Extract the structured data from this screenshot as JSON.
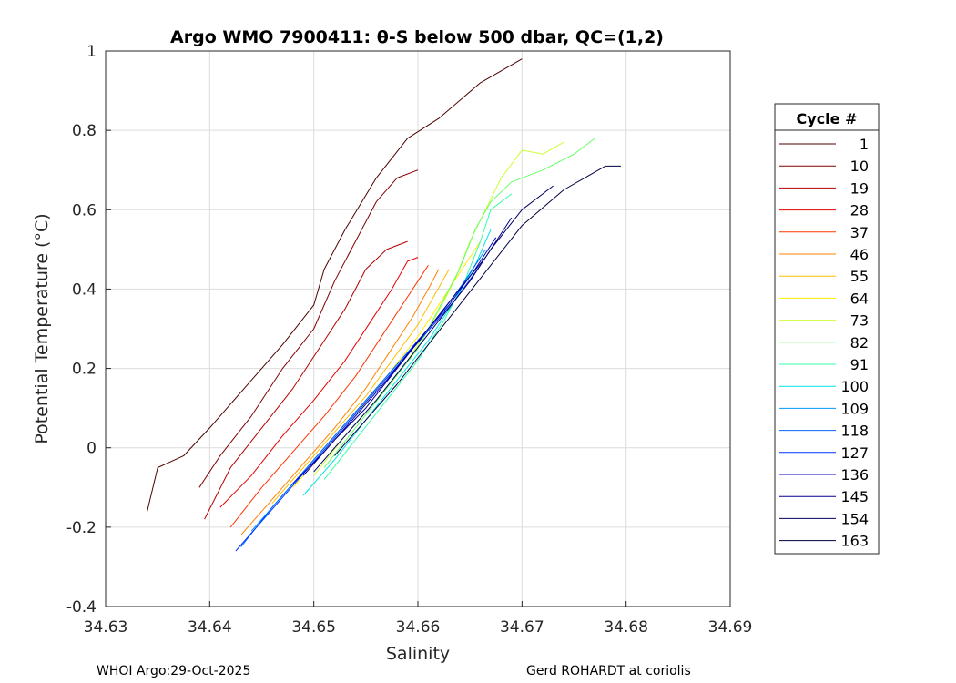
{
  "chart_data": {
    "type": "line",
    "title": "Argo WMO 7900411: θ-S below 500 dbar,  QC=(1,2)",
    "xlabel": "Salinity",
    "ylabel": "Potential Temperature (°C)",
    "xlim": [
      34.63,
      34.69
    ],
    "ylim": [
      -0.4,
      1.0
    ],
    "x_ticks": [
      "34.63",
      "34.64",
      "34.65",
      "34.66",
      "34.67",
      "34.68",
      "34.69"
    ],
    "y_ticks": [
      "1",
      "0.8",
      "0.6",
      "0.4",
      "0.2",
      "0",
      "-0.2",
      "-0.4"
    ],
    "grid": true,
    "legend": {
      "title": "Cycle #",
      "placement": "right",
      "entries": [
        {
          "label": "1",
          "color": "#4d0000"
        },
        {
          "label": "10",
          "color": "#800000"
        },
        {
          "label": "19",
          "color": "#b30000"
        },
        {
          "label": "28",
          "color": "#e60000"
        },
        {
          "label": "37",
          "color": "#ff3300"
        },
        {
          "label": "46",
          "color": "#ff8000"
        },
        {
          "label": "55",
          "color": "#ffbf00"
        },
        {
          "label": "64",
          "color": "#ffee00"
        },
        {
          "label": "73",
          "color": "#ccff33"
        },
        {
          "label": "82",
          "color": "#66ff66"
        },
        {
          "label": "91",
          "color": "#33ffaa"
        },
        {
          "label": "100",
          "color": "#00e6e6"
        },
        {
          "label": "109",
          "color": "#0099ff"
        },
        {
          "label": "118",
          "color": "#0066ff"
        },
        {
          "label": "127",
          "color": "#0033ff"
        },
        {
          "label": "136",
          "color": "#0000cc"
        },
        {
          "label": "145",
          "color": "#00008c"
        },
        {
          "label": "154",
          "color": "#000066"
        },
        {
          "label": "163",
          "color": "#000040"
        }
      ]
    },
    "series": [
      {
        "name": "1",
        "color": "#4d0000",
        "points": [
          [
            34.634,
            -0.16
          ],
          [
            34.635,
            -0.05
          ],
          [
            34.6375,
            -0.02
          ],
          [
            34.64,
            0.05
          ],
          [
            34.643,
            0.14
          ],
          [
            34.647,
            0.26
          ],
          [
            34.65,
            0.36
          ],
          [
            34.651,
            0.45
          ],
          [
            34.653,
            0.55
          ],
          [
            34.656,
            0.68
          ],
          [
            34.659,
            0.78
          ],
          [
            34.662,
            0.83
          ],
          [
            34.666,
            0.92
          ],
          [
            34.668,
            0.95
          ],
          [
            34.67,
            0.98
          ]
        ]
      },
      {
        "name": "10",
        "color": "#800000",
        "points": [
          [
            34.639,
            -0.1
          ],
          [
            34.641,
            -0.02
          ],
          [
            34.644,
            0.08
          ],
          [
            34.647,
            0.2
          ],
          [
            34.65,
            0.3
          ],
          [
            34.652,
            0.42
          ],
          [
            34.654,
            0.52
          ],
          [
            34.656,
            0.62
          ],
          [
            34.658,
            0.68
          ],
          [
            34.66,
            0.7
          ]
        ]
      },
      {
        "name": "19",
        "color": "#b30000",
        "points": [
          [
            34.6395,
            -0.18
          ],
          [
            34.642,
            -0.05
          ],
          [
            34.645,
            0.05
          ],
          [
            34.648,
            0.15
          ],
          [
            34.651,
            0.27
          ],
          [
            34.653,
            0.35
          ],
          [
            34.655,
            0.45
          ],
          [
            34.657,
            0.5
          ],
          [
            34.659,
            0.52
          ]
        ]
      },
      {
        "name": "28",
        "color": "#e60000",
        "points": [
          [
            34.641,
            -0.15
          ],
          [
            34.644,
            -0.07
          ],
          [
            34.647,
            0.03
          ],
          [
            34.65,
            0.12
          ],
          [
            34.653,
            0.22
          ],
          [
            34.6555,
            0.32
          ],
          [
            34.6575,
            0.4
          ],
          [
            34.659,
            0.47
          ],
          [
            34.66,
            0.48
          ]
        ]
      },
      {
        "name": "37",
        "color": "#ff3300",
        "points": [
          [
            34.642,
            -0.2
          ],
          [
            34.645,
            -0.1
          ],
          [
            34.648,
            -0.01
          ],
          [
            34.651,
            0.08
          ],
          [
            34.654,
            0.18
          ],
          [
            34.6565,
            0.28
          ],
          [
            34.6585,
            0.36
          ],
          [
            34.66,
            0.42
          ],
          [
            34.661,
            0.46
          ]
        ]
      },
      {
        "name": "46",
        "color": "#ff8000",
        "points": [
          [
            34.643,
            -0.22
          ],
          [
            34.646,
            -0.13
          ],
          [
            34.649,
            -0.04
          ],
          [
            34.652,
            0.05
          ],
          [
            34.655,
            0.15
          ],
          [
            34.6575,
            0.25
          ],
          [
            34.6595,
            0.33
          ],
          [
            34.661,
            0.4
          ],
          [
            34.662,
            0.45
          ]
        ]
      },
      {
        "name": "55",
        "color": "#ffbf00",
        "points": [
          [
            34.646,
            -0.14
          ],
          [
            34.649,
            -0.05
          ],
          [
            34.652,
            0.04
          ],
          [
            34.655,
            0.13
          ],
          [
            34.6575,
            0.22
          ],
          [
            34.66,
            0.31
          ],
          [
            34.6615,
            0.38
          ],
          [
            34.663,
            0.45
          ]
        ]
      },
      {
        "name": "64",
        "color": "#ffee00",
        "points": [
          [
            34.648,
            -0.1
          ],
          [
            34.651,
            -0.01
          ],
          [
            34.654,
            0.08
          ],
          [
            34.657,
            0.18
          ],
          [
            34.66,
            0.28
          ],
          [
            34.662,
            0.36
          ],
          [
            34.664,
            0.44
          ],
          [
            34.666,
            0.52
          ]
        ]
      },
      {
        "name": "73",
        "color": "#ccff33",
        "points": [
          [
            34.65,
            -0.07
          ],
          [
            34.653,
            0.03
          ],
          [
            34.656,
            0.12
          ],
          [
            34.659,
            0.22
          ],
          [
            34.6615,
            0.32
          ],
          [
            34.6635,
            0.42
          ],
          [
            34.665,
            0.52
          ],
          [
            34.6665,
            0.6
          ],
          [
            34.668,
            0.68
          ],
          [
            34.67,
            0.75
          ],
          [
            34.672,
            0.74
          ],
          [
            34.674,
            0.77
          ]
        ]
      },
      {
        "name": "82",
        "color": "#66ff66",
        "points": [
          [
            34.651,
            -0.05
          ],
          [
            34.654,
            0.05
          ],
          [
            34.657,
            0.15
          ],
          [
            34.66,
            0.25
          ],
          [
            34.662,
            0.35
          ],
          [
            34.664,
            0.45
          ],
          [
            34.6655,
            0.55
          ],
          [
            34.667,
            0.62
          ],
          [
            34.669,
            0.67
          ],
          [
            34.672,
            0.7
          ],
          [
            34.675,
            0.74
          ],
          [
            34.677,
            0.78
          ]
        ]
      },
      {
        "name": "91",
        "color": "#33ffaa",
        "points": [
          [
            34.651,
            -0.08
          ],
          [
            34.654,
            0.02
          ],
          [
            34.657,
            0.12
          ],
          [
            34.66,
            0.22
          ],
          [
            34.6625,
            0.32
          ],
          [
            34.6645,
            0.42
          ],
          [
            34.666,
            0.52
          ],
          [
            34.667,
            0.6
          ],
          [
            34.669,
            0.64
          ]
        ]
      },
      {
        "name": "100",
        "color": "#00e6e6",
        "points": [
          [
            34.649,
            -0.12
          ],
          [
            34.652,
            -0.03
          ],
          [
            34.655,
            0.07
          ],
          [
            34.658,
            0.17
          ],
          [
            34.661,
            0.27
          ],
          [
            34.6635,
            0.37
          ],
          [
            34.6655,
            0.46
          ],
          [
            34.667,
            0.55
          ]
        ]
      },
      {
        "name": "109",
        "color": "#0099ff",
        "points": [
          [
            34.644,
            -0.21
          ],
          [
            34.647,
            -0.12
          ],
          [
            34.65,
            -0.03
          ],
          [
            34.653,
            0.06
          ],
          [
            34.656,
            0.15
          ],
          [
            34.659,
            0.24
          ],
          [
            34.662,
            0.33
          ],
          [
            34.6645,
            0.42
          ],
          [
            34.6665,
            0.5
          ]
        ]
      },
      {
        "name": "118",
        "color": "#0066ff",
        "points": [
          [
            34.643,
            -0.25
          ],
          [
            34.646,
            -0.15
          ],
          [
            34.649,
            -0.06
          ],
          [
            34.652,
            0.03
          ],
          [
            34.655,
            0.12
          ],
          [
            34.658,
            0.21
          ],
          [
            34.661,
            0.3
          ],
          [
            34.664,
            0.4
          ],
          [
            34.666,
            0.48
          ]
        ]
      },
      {
        "name": "127",
        "color": "#0033ff",
        "points": [
          [
            34.6425,
            -0.26
          ],
          [
            34.6455,
            -0.17
          ],
          [
            34.6485,
            -0.08
          ],
          [
            34.6515,
            0.01
          ],
          [
            34.6545,
            0.1
          ],
          [
            34.6575,
            0.19
          ],
          [
            34.6605,
            0.28
          ],
          [
            34.6635,
            0.37
          ],
          [
            34.666,
            0.46
          ]
        ]
      },
      {
        "name": "136",
        "color": "#0000cc",
        "points": [
          [
            34.648,
            -0.09
          ],
          [
            34.651,
            -0.01
          ],
          [
            34.654,
            0.08
          ],
          [
            34.657,
            0.17
          ],
          [
            34.66,
            0.27
          ],
          [
            34.663,
            0.36
          ],
          [
            34.6655,
            0.45
          ],
          [
            34.6675,
            0.53
          ]
        ]
      },
      {
        "name": "145",
        "color": "#00008c",
        "points": [
          [
            34.649,
            -0.07
          ],
          [
            34.652,
            0.02
          ],
          [
            34.655,
            0.1
          ],
          [
            34.658,
            0.2
          ],
          [
            34.661,
            0.3
          ],
          [
            34.664,
            0.4
          ],
          [
            34.6665,
            0.48
          ],
          [
            34.669,
            0.58
          ]
        ]
      },
      {
        "name": "154",
        "color": "#000066",
        "points": [
          [
            34.65,
            -0.06
          ],
          [
            34.653,
            0.03
          ],
          [
            34.656,
            0.12
          ],
          [
            34.659,
            0.22
          ],
          [
            34.662,
            0.32
          ],
          [
            34.665,
            0.42
          ],
          [
            34.667,
            0.5
          ],
          [
            34.67,
            0.6
          ],
          [
            34.673,
            0.66
          ]
        ]
      },
      {
        "name": "163",
        "color": "#000040",
        "points": [
          [
            34.652,
            -0.02
          ],
          [
            34.655,
            0.07
          ],
          [
            34.658,
            0.16
          ],
          [
            34.661,
            0.26
          ],
          [
            34.664,
            0.36
          ],
          [
            34.667,
            0.46
          ],
          [
            34.67,
            0.56
          ],
          [
            34.674,
            0.65
          ],
          [
            34.678,
            0.71
          ],
          [
            34.6795,
            0.71
          ]
        ]
      }
    ]
  },
  "footer": {
    "left": "WHOI Argo:29-Oct-2025",
    "right": "Gerd ROHARDT at coriolis"
  }
}
